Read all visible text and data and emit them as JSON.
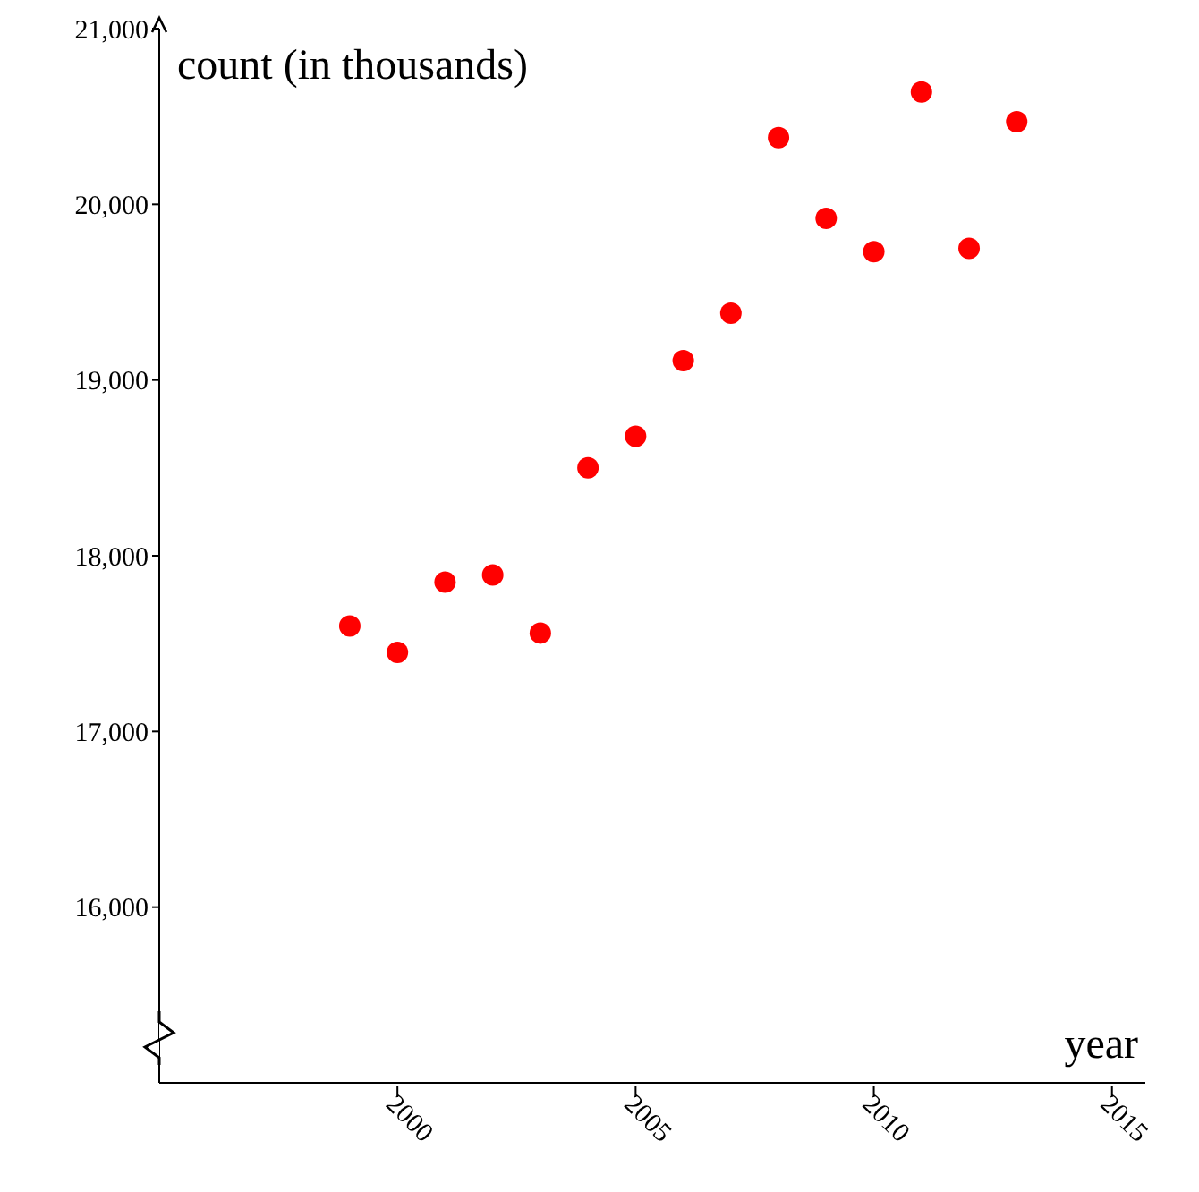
{
  "chart_data": {
    "type": "scatter",
    "xlabel": "year",
    "ylabel": "count (in thousands)",
    "x": [
      1999,
      2000,
      2001,
      2002,
      2003,
      2004,
      2005,
      2006,
      2007,
      2008,
      2009,
      2010,
      2011,
      2012,
      2013
    ],
    "values": [
      17600,
      17450,
      17850,
      17890,
      17560,
      18500,
      18680,
      19110,
      19380,
      20380,
      19920,
      19730,
      20640,
      19750,
      20470
    ],
    "color": "#ff0000",
    "marker": "circle",
    "grid": false,
    "legend": false,
    "xlim": [
      1995,
      2015.7
    ],
    "xticks": [
      2000,
      2005,
      2010,
      2015
    ],
    "ylim": [
      15000,
      21000
    ],
    "yticks": [
      {
        "value": 16000,
        "label": "16,000"
      },
      {
        "value": 17000,
        "label": "17,000"
      },
      {
        "value": 18000,
        "label": "18,000"
      },
      {
        "value": 19000,
        "label": "19,000"
      },
      {
        "value": 20000,
        "label": "20,000"
      },
      {
        "value": 21000,
        "label": "21,000"
      }
    ]
  }
}
